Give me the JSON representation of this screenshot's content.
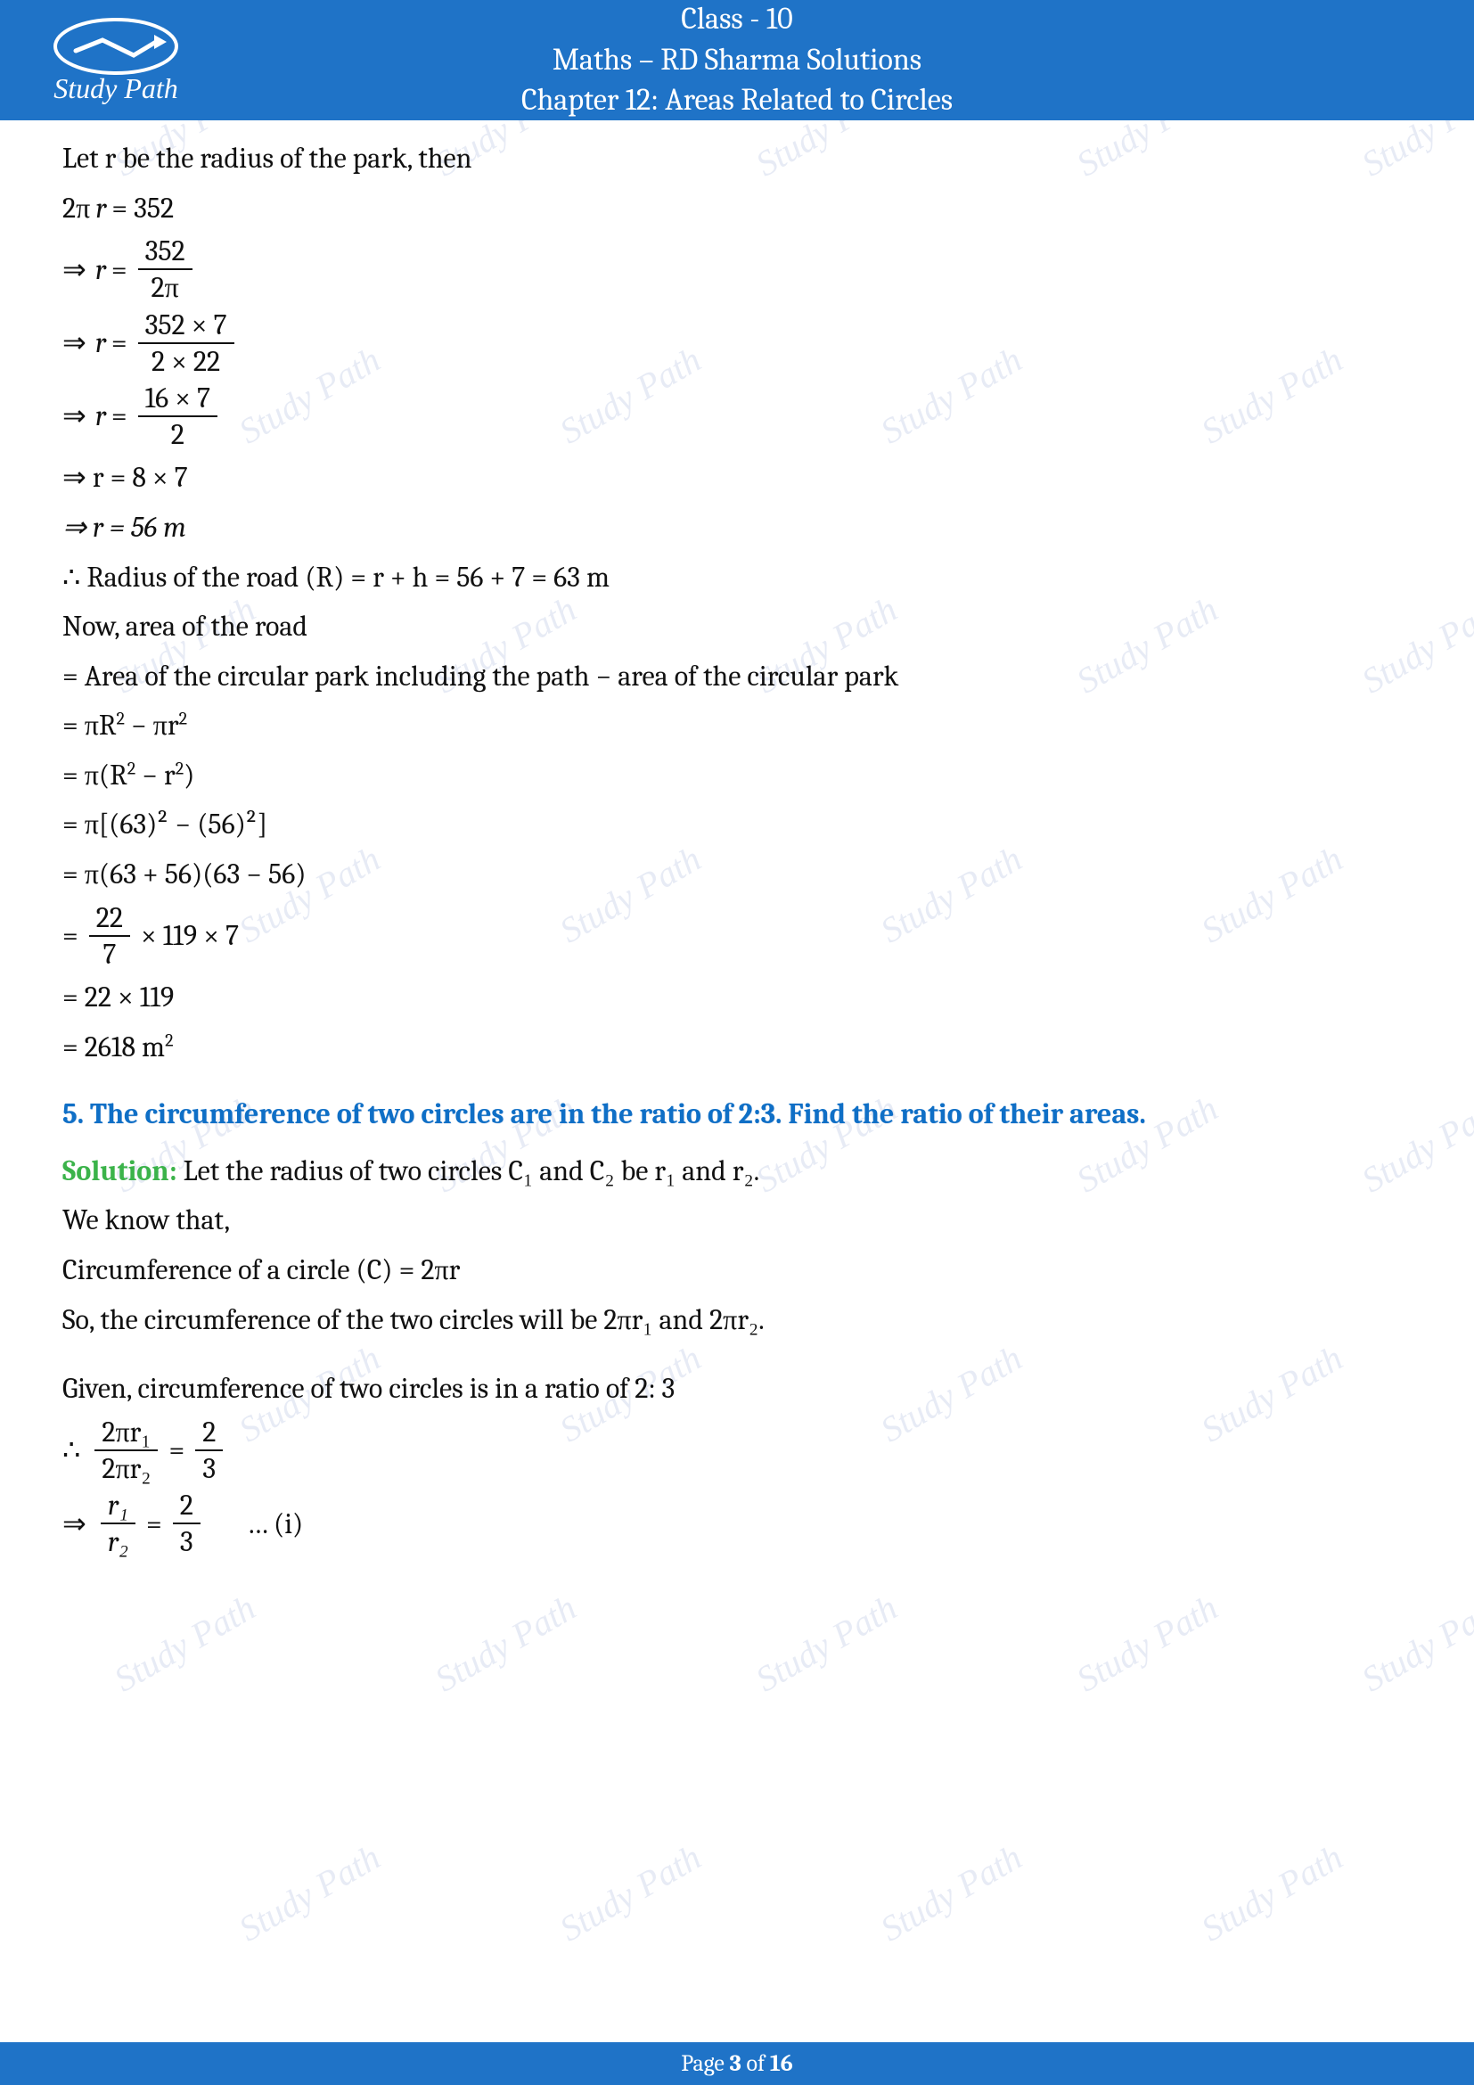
{
  "header": {
    "class_line": "Class - 10",
    "subject_line": "Maths – RD Sharma Solutions",
    "chapter_line": "Chapter 12: Areas Related to Circles",
    "logo_text": "Study Path"
  },
  "watermark_text": "Study Path",
  "content": {
    "l1": "Let r be the radius of the park, then",
    "l2_lhs": "2π",
    "l2_var": "r",
    "l2_eq": " = 352",
    "l3_pre": "⇒ ",
    "l3_var": "r",
    "l3_eq": " = ",
    "l3_num": "352",
    "l3_den": "2π",
    "l4_pre": "⇒ ",
    "l4_var": "r",
    "l4_eq": " = ",
    "l4_num": "352 × 7",
    "l4_den": "2 × 22",
    "l5_pre": "⇒ ",
    "l5_var": "r",
    "l5_eq": " = ",
    "l5_num": "16 × 7",
    "l5_den": "2",
    "l6": "⇒ r = 8 × 7",
    "l7": "⇒ r = 56 m",
    "l8": "∴ Radius of the road (R) = r + h = 56 + 7 = 63 m",
    "l9": "Now, area of the road",
    "l10": " = Area of the circular park including the path − area of the circular park",
    "l11_a": "= πR",
    "l11_b": " − πr",
    "l12_a": "= π(R",
    "l12_b": " − r",
    "l12_c": ")",
    "l13": "= π[(63)² − (56)²]",
    "l14": "= π(63 + 56)(63 − 56)",
    "l15_eq": "= ",
    "l15_num": "22",
    "l15_den": "7",
    "l15_tail": " × 119 × 7",
    "l16": " = 22 × 119",
    "l17_a": "= 2618 m",
    "q5": "5. The circumference of two circles are in the ratio of 2:3. Find the ratio of their areas.",
    "sol_label": "Solution:",
    "s1": " Let the radius of two circles C₁ and C₂ be r₁ and r₂.",
    "s2": "We know that,",
    "s3": "Circumference of a circle (C) = 2πr",
    "s4": "So, the circumference of the two circles will be 2πr₁ and 2πr₂.",
    "s5": "Given, circumference of two circles is in a ratio of 2: 3",
    "s6_sym": "∴",
    "s6_num1": "2πr₁",
    "s6_den1": "2πr₂",
    "s6_eq": " = ",
    "s6_num2": "2",
    "s6_den2": "3",
    "s7_sym": "⇒",
    "s7_num1": "r₁",
    "s7_den1": "r₂",
    "s7_eq": " = ",
    "s7_num2": "2",
    "s7_den2": "3",
    "s7_tail": "… (i)"
  },
  "footer": {
    "prefix": "Page ",
    "current": "3",
    "mid": " of ",
    "total": "16"
  }
}
